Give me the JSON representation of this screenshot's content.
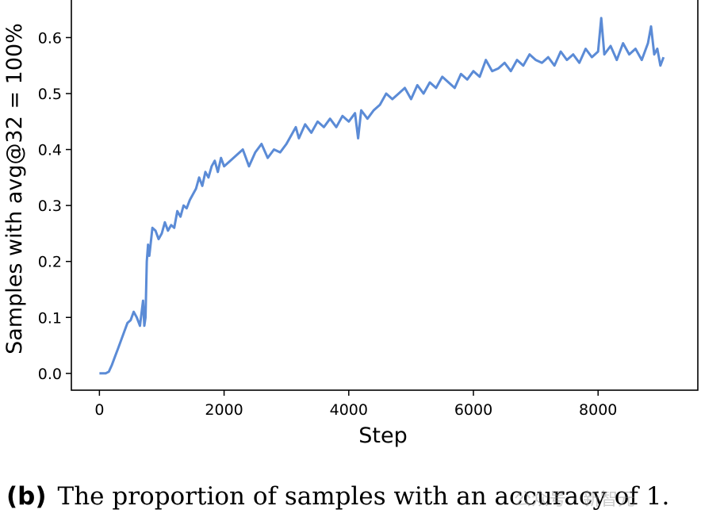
{
  "chart_data": {
    "type": "line",
    "xlabel": "Step",
    "ylabel": "Samples with avg@32 = 100%",
    "xlim": [
      -450,
      9600
    ],
    "ylim": [
      -0.03,
      0.67
    ],
    "xticks": [
      0,
      2000,
      4000,
      6000,
      8000
    ],
    "xtick_labels": [
      "0",
      "2000",
      "4000",
      "6000",
      "8000"
    ],
    "yticks": [
      0.0,
      0.1,
      0.2,
      0.3,
      0.4,
      0.5,
      0.6
    ],
    "ytick_labels": [
      "0.0",
      "0.1",
      "0.2",
      "0.3",
      "0.4",
      "0.5",
      "0.6"
    ],
    "grid": false,
    "series": [
      {
        "color": "#5b8bd6",
        "x": [
          0,
          100,
          150,
          200,
          250,
          300,
          350,
          400,
          450,
          500,
          550,
          600,
          650,
          700,
          720,
          740,
          760,
          780,
          800,
          850,
          900,
          950,
          1000,
          1050,
          1100,
          1150,
          1200,
          1250,
          1300,
          1350,
          1400,
          1450,
          1500,
          1550,
          1600,
          1650,
          1700,
          1750,
          1800,
          1850,
          1900,
          1950,
          2000,
          2100,
          2200,
          2300,
          2400,
          2500,
          2600,
          2700,
          2800,
          2900,
          3000,
          3100,
          3150,
          3200,
          3300,
          3400,
          3500,
          3600,
          3700,
          3800,
          3900,
          4000,
          4100,
          4150,
          4200,
          4300,
          4400,
          4500,
          4600,
          4700,
          4800,
          4900,
          5000,
          5100,
          5200,
          5300,
          5400,
          5500,
          5600,
          5700,
          5800,
          5900,
          6000,
          6100,
          6200,
          6300,
          6400,
          6500,
          6600,
          6700,
          6800,
          6900,
          7000,
          7100,
          7200,
          7300,
          7400,
          7500,
          7600,
          7700,
          7800,
          7900,
          8000,
          8050,
          8100,
          8200,
          8300,
          8400,
          8500,
          8600,
          8700,
          8800,
          8850,
          8900,
          8950,
          9000,
          9050
        ],
        "values": [
          0.0,
          0.0,
          0.003,
          0.015,
          0.03,
          0.045,
          0.06,
          0.075,
          0.09,
          0.095,
          0.11,
          0.1,
          0.085,
          0.13,
          0.085,
          0.1,
          0.2,
          0.23,
          0.21,
          0.26,
          0.255,
          0.24,
          0.25,
          0.27,
          0.255,
          0.265,
          0.26,
          0.29,
          0.28,
          0.3,
          0.295,
          0.31,
          0.32,
          0.33,
          0.35,
          0.335,
          0.36,
          0.35,
          0.37,
          0.38,
          0.36,
          0.385,
          0.37,
          0.38,
          0.39,
          0.4,
          0.37,
          0.395,
          0.41,
          0.385,
          0.4,
          0.395,
          0.41,
          0.43,
          0.44,
          0.42,
          0.445,
          0.43,
          0.45,
          0.44,
          0.455,
          0.44,
          0.46,
          0.45,
          0.465,
          0.42,
          0.47,
          0.455,
          0.47,
          0.48,
          0.5,
          0.49,
          0.5,
          0.51,
          0.49,
          0.515,
          0.5,
          0.52,
          0.51,
          0.53,
          0.52,
          0.51,
          0.535,
          0.525,
          0.54,
          0.53,
          0.56,
          0.54,
          0.545,
          0.555,
          0.54,
          0.56,
          0.55,
          0.57,
          0.56,
          0.555,
          0.565,
          0.55,
          0.575,
          0.56,
          0.57,
          0.555,
          0.58,
          0.565,
          0.575,
          0.635,
          0.57,
          0.585,
          0.56,
          0.59,
          0.57,
          0.58,
          0.56,
          0.59,
          0.62,
          0.57,
          0.58,
          0.55,
          0.565
        ]
      }
    ]
  },
  "caption": {
    "tag": "(b)",
    "text": "The proportion of samples with an accuracy of 1."
  },
  "watermark": "公众号 · 新智元"
}
